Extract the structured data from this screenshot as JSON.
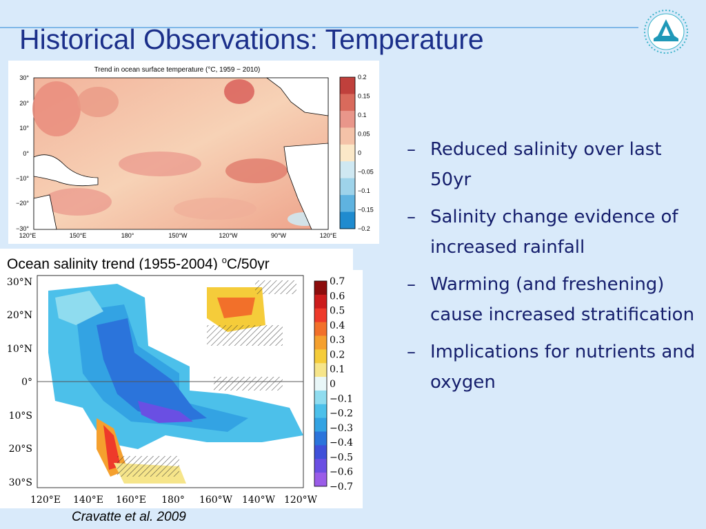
{
  "slide": {
    "title": "Historical Observations: Temperature",
    "bullet_marker": "–",
    "bullets": [
      "Reduced salinity over last 50yr",
      "Salinity change evidence of increased rainfall",
      "Warming (and freshening) cause increased stratification",
      "Implications for nutrients and oxygen"
    ],
    "citation": "Cravatte et al. 2009"
  },
  "map_temperature": {
    "title": "Trend in ocean surface temperature (°C, 1959 − 2010)",
    "lat_labels": [
      "30°",
      "20°",
      "10°",
      "0°",
      "−10°",
      "−20°",
      "−30°"
    ],
    "lon_labels": [
      "120°E",
      "150°E",
      "180°",
      "150°W",
      "120°W",
      "90°W",
      "120°E"
    ],
    "colorbar_labels": [
      "0.2",
      "0.15",
      "0.1",
      "0.05",
      "0",
      "−0.05",
      "−0.1",
      "−0.15",
      "−0.2"
    ],
    "colorbar_colors": [
      "#c0403c",
      "#d96a5c",
      "#e9968a",
      "#f4c2a8",
      "#fbe8c8",
      "#cfe8f2",
      "#9ed3ea",
      "#5fb3e0",
      "#1f8bcf"
    ]
  },
  "map_salinity": {
    "title_prefix": "Ocean salinity trend (1955-2004) ",
    "title_sup": "o",
    "title_suffix": "C/50yr",
    "lat_labels": [
      "30°N",
      "20°N",
      "10°N",
      "0°",
      "10°S",
      "20°S",
      "30°S"
    ],
    "lon_labels": [
      "120°E",
      "140°E",
      "160°E",
      "180°",
      "160°W",
      "140°W",
      "120°W"
    ],
    "colorbar_labels": [
      "0.7",
      "0.6",
      "0.5",
      "0.4",
      "0.3",
      "0.2",
      "0.1",
      "0",
      "−0.1",
      "−0.2",
      "−0.3",
      "−0.4",
      "−0.5",
      "−0.6",
      "−0.7"
    ],
    "colorbar_colors": [
      "#8c0d0d",
      "#cc1c1c",
      "#ee3a2a",
      "#f2702a",
      "#f5a02e",
      "#f5cc3a",
      "#f6e58a",
      "#e9f7f8",
      "#8fdcef",
      "#4cc0ea",
      "#33a3e3",
      "#2b74db",
      "#3f50d9",
      "#6a4fe3",
      "#9a5ce8"
    ]
  }
}
